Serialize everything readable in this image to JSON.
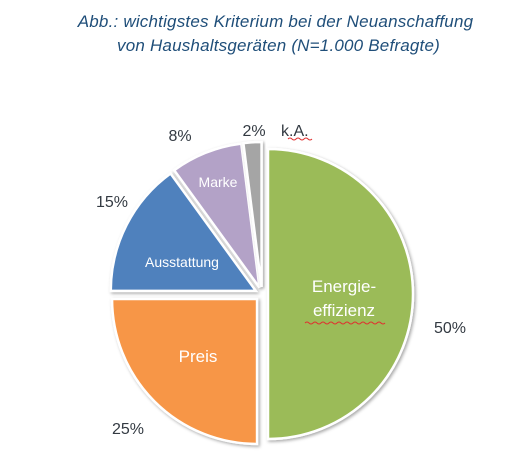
{
  "chart_data": {
    "type": "pie",
    "title_line1": "Abb.: wichtigstes Kriterium bei der Neuanschaffung",
    "title_line2": "von Haushaltsgeräten (N=1.000 Befragte)",
    "slices": [
      {
        "label": "Energie-effizienz",
        "label_line1": "Energie-",
        "label_line2": "effizienz",
        "value": 50,
        "value_label": "50%",
        "color": "#9bbb59"
      },
      {
        "label": "Preis",
        "value": 25,
        "value_label": "25%",
        "color": "#f79646"
      },
      {
        "label": "Ausstattung",
        "value": 15,
        "value_label": "15%",
        "color": "#4f81bd"
      },
      {
        "label": "Marke",
        "value": 8,
        "value_label": "8%",
        "color": "#b3a2c7"
      },
      {
        "label": "k.A.",
        "value": 2,
        "value_label": "2%",
        "color": "#a5a5a5"
      }
    ],
    "exploded": true,
    "legend": "none"
  }
}
